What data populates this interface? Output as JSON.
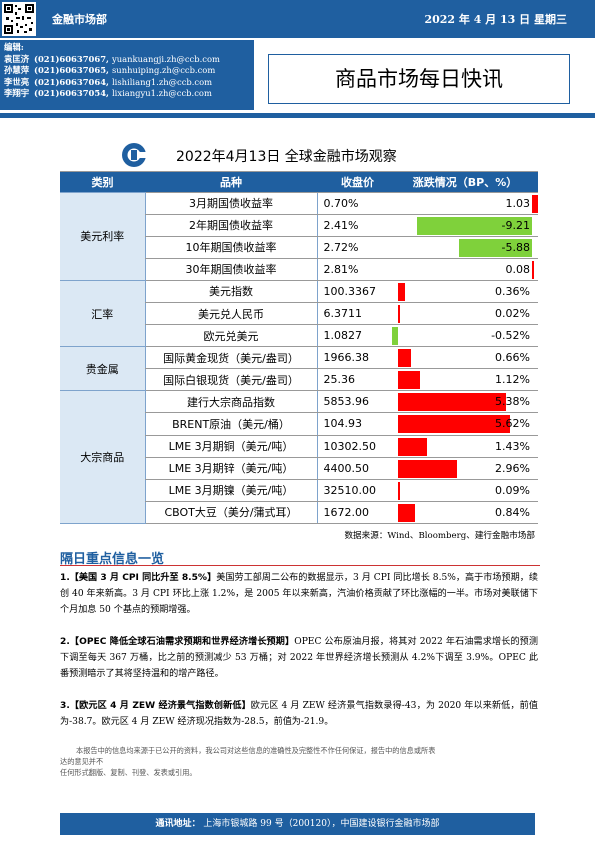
{
  "header": {
    "department": "金融市场部",
    "date": "2022 年 4 月 13 日  星期三"
  },
  "editors": {
    "label": "编辑:",
    "list": [
      {
        "name": "袁匡济",
        "phone": "(021)60637067,",
        "email": "yuankuangji.zh@ccb.com"
      },
      {
        "name": "孙慧萍",
        "phone": "(021)60637065,",
        "email": "sunhuiping.zh@ccb.com"
      },
      {
        "name": "李世亮",
        "phone": "(021)60637064,",
        "email": "lishiliang1.zh@ccb.com"
      },
      {
        "name": "李翔宇",
        "phone": "(021)60637054,",
        "email": "lixiangyu1.zh@ccb.com"
      }
    ]
  },
  "title": "商品市场每日快讯",
  "table": {
    "title": "2022年4月13日 全球金融市场观察",
    "headers": [
      "类别",
      "品种",
      "收盘价",
      "涨跌情况（BP、%）"
    ],
    "groups": [
      {
        "category": "美元利率",
        "rows": [
          {
            "name": "3月期国债收益率",
            "close": "0.70%",
            "change": "1.03",
            "v": 1.03
          },
          {
            "name": "2年期国债收益率",
            "close": "2.41%",
            "change": "-9.21",
            "v": -9.21
          },
          {
            "name": "10年期国债收益率",
            "close": "2.72%",
            "change": "-5.88",
            "v": -5.88
          },
          {
            "name": "30年期国债收益率",
            "close": "2.81%",
            "change": "0.08",
            "v": 0.08
          }
        ]
      },
      {
        "category": "汇率",
        "rows": [
          {
            "name": "美元指数",
            "close": "100.3367",
            "change": "0.36%",
            "v": 0.36
          },
          {
            "name": "美元兑人民币",
            "close": "6.3711",
            "change": "0.02%",
            "v": 0.02
          },
          {
            "name": "欧元兑美元",
            "close": "1.0827",
            "change": "-0.52%",
            "v": -0.52
          }
        ]
      },
      {
        "category": "贵金属",
        "rows": [
          {
            "name": "国际黄金现货（美元/盎司）",
            "close": "1966.38",
            "change": "0.66%",
            "v": 0.66
          },
          {
            "name": "国际白银现货（美元/盎司）",
            "close": "25.36",
            "change": "1.12%",
            "v": 1.12
          }
        ]
      },
      {
        "category": "大宗商品",
        "rows": [
          {
            "name": "建行大宗商品指数",
            "close": "5853.96",
            "change": "5.38%",
            "v": 5.38
          },
          {
            "name": "BRENT原油（美元/桶）",
            "close": "104.93",
            "change": "5.62%",
            "v": 5.62
          },
          {
            "name": "LME 3月期铜（美元/吨）",
            "close": "10302.50",
            "change": "1.43%",
            "v": 1.43
          },
          {
            "name": "LME 3月期锌（美元/吨）",
            "close": "4400.50",
            "change": "2.96%",
            "v": 2.96
          },
          {
            "name": "LME 3月期镍（美元/吨）",
            "close": "32510.00",
            "change": "0.09%",
            "v": 0.09
          },
          {
            "name": "CBOT大豆（美分/蒲式耳）",
            "close": "1672.00",
            "change": "0.84%",
            "v": 0.84
          }
        ]
      }
    ],
    "source": "数据来源：Wind、Bloomberg、建行金融市场部",
    "colors": {
      "positive": "#ff0000",
      "negative": "#7fd13b",
      "header": "#1f5fa0"
    }
  },
  "section_title": "隔日重点信息一览",
  "news": [
    {
      "headline": "1.【美国 3 月 CPI 同比升至 8.5%】",
      "body": "美国劳工部周二公布的数据显示，3 月 CPI 同比增长 8.5%，高于市场预期，续创 40 年来新高。3 月 CPI 环比上涨 1.2%，是 2005 年以来新高，汽油价格贡献了环比涨幅的一半。市场对美联储下个月加息 50 个基点的预期增强。"
    },
    {
      "headline": "2.【OPEC 降低全球石油需求预期和世界经济增长预期】",
      "body": "OPEC 公布原油月报，将其对 2022 年石油需求增长的预测下调至每天 367 万桶，比之前的预测减少 53 万桶；对 2022 年世界经济增长预测从 4.2%下调至 3.9%。OPEC 此番预测暗示了其将坚持温和的增产路径。"
    },
    {
      "headline": "3.【欧元区 4 月 ZEW 经济景气指数创新低】",
      "body": "欧元区 4 月 ZEW 经济景气指数录得-43，为 2020 年以来新低，前值为-38.7。欧元区 4 月 ZEW 经济现况指数为-28.5，前值为-21.9。"
    }
  ],
  "disclaimer": "本报告中的信息均来源于已公开的资料，我公司对这些信息的准确性及完整性不作任何保证，报告中的信息或所表达的意见并不构成所述品种买卖的出价或询价。任何形式翻版、复制、刊登、发表或引用。",
  "disclaimer_lines": [
    "本报告中的信息均来源于已公开的资料，我公司对这些信息的准确性及完整性不作任何保证，报告中的信息或所表",
    "达的意见并不",
    "任何形式翻版、复制、刊登、发表或引用。"
  ],
  "footer": {
    "label": "通讯地址：",
    "address": "上海市银城路 99 号（200120），中国建设银行金融市场部"
  }
}
